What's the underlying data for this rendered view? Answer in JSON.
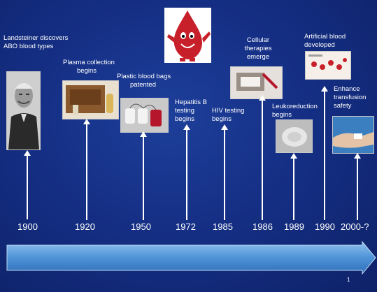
{
  "events": [
    {
      "year": "1900",
      "label_lines": [
        "Landsteiner discovers",
        "ABO blood types"
      ]
    },
    {
      "year": "1920",
      "label_lines": [
        "Plasma collection",
        "begins"
      ]
    },
    {
      "year": "1950",
      "label_lines": [
        "Plastic blood bags",
        "patented"
      ]
    },
    {
      "year": "1972",
      "label_lines": [
        "Hepatitis B",
        "testing",
        "begins"
      ]
    },
    {
      "year": "1985",
      "label_lines": [
        "HIV testing",
        "begins"
      ]
    },
    {
      "year": "1986",
      "label_lines": [
        "Cellular",
        "therapies",
        "emerge"
      ]
    },
    {
      "year": "1989",
      "label_lines": [
        "Leukoreduction",
        "begins"
      ]
    },
    {
      "year": "1990",
      "label_lines": [
        "Artificial blood",
        "developed"
      ]
    },
    {
      "year": "2000-?",
      "label_lines": [
        "Enhance",
        "transfusion",
        "safety"
      ]
    }
  ],
  "page_number": "1",
  "colors": {
    "background": "#152f85",
    "arrow": "#5a9ee0",
    "text": "#ffffff"
  },
  "images": [
    "portrait-photo",
    "plasma-box-photo",
    "blood-bags-photo",
    "blood-drop-mascot",
    "cell-therapy-photo",
    "leukoreduction-filter-photo",
    "artificial-blood-diagram",
    "transfusion-safety-photo"
  ]
}
